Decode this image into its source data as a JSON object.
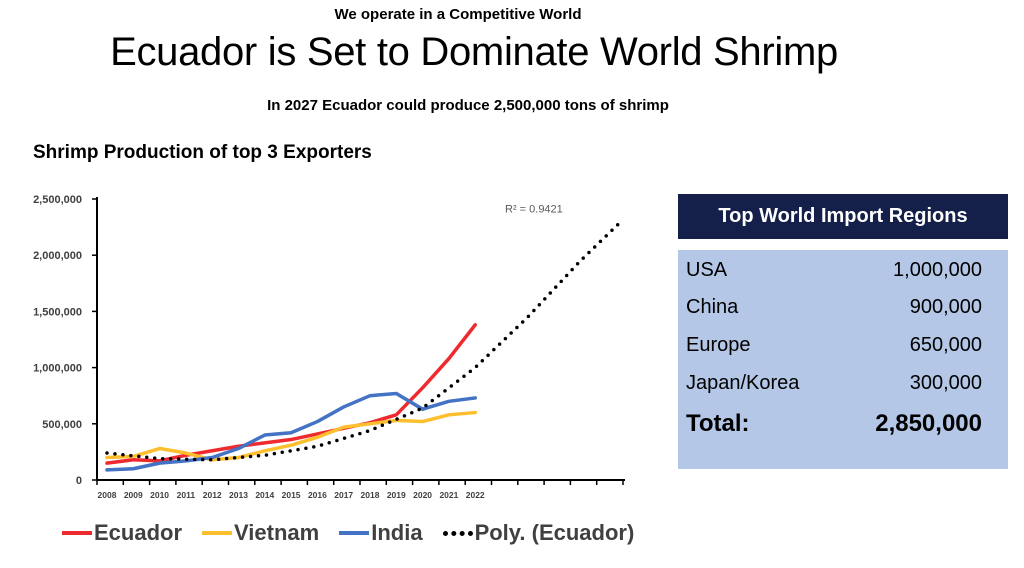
{
  "header": {
    "tagline": "We operate in a Competitive World",
    "headline": "Ecuador is Set to Dominate World Shrimp",
    "subhead": "In 2027 Ecuador could produce 2,500,000 tons of shrimp"
  },
  "chart_title": "Shrimp Production of top 3 Exporters",
  "chart_data": {
    "type": "line",
    "title": "Shrimp Production of top 3 Exporters",
    "xlabel": "",
    "ylabel": "",
    "categories": [
      "2008",
      "2009",
      "2010",
      "2011",
      "2012",
      "2013",
      "2014",
      "2015",
      "2016",
      "2017",
      "2018",
      "2019",
      "2020",
      "2021",
      "2022"
    ],
    "ylim": [
      0,
      2500000
    ],
    "yticks": [
      0,
      500000,
      1000000,
      1500000,
      2000000,
      2500000
    ],
    "ytick_labels": [
      "0",
      "500,000",
      "1,000,000",
      "1,500,000",
      "2,000,000",
      "2,500,000"
    ],
    "series": [
      {
        "name": "Ecuador",
        "color": "#ee2a2f",
        "values": [
          150000,
          180000,
          170000,
          220000,
          260000,
          300000,
          330000,
          360000,
          410000,
          460000,
          510000,
          580000,
          820000,
          1080000,
          1380000
        ]
      },
      {
        "name": "Vietnam",
        "color": "#fdbf2d",
        "values": [
          200000,
          210000,
          280000,
          240000,
          180000,
          200000,
          260000,
          310000,
          380000,
          470000,
          500000,
          530000,
          520000,
          580000,
          600000
        ]
      },
      {
        "name": "India",
        "color": "#4472c4",
        "values": [
          90000,
          100000,
          150000,
          170000,
          200000,
          280000,
          400000,
          420000,
          520000,
          650000,
          750000,
          770000,
          630000,
          700000,
          730000
        ]
      }
    ],
    "trendline": {
      "name": "Poly. (Ecuador)",
      "color": "#000000",
      "style": "dotted",
      "r_squared_label": "R² = 0.9421",
      "x": [
        0,
        2,
        4,
        6,
        8,
        10,
        12,
        14,
        16,
        18,
        19.5
      ],
      "values": [
        240000,
        190000,
        180000,
        220000,
        300000,
        440000,
        640000,
        1000000,
        1450000,
        1950000,
        2290000
      ]
    },
    "legend_position": "bottom"
  },
  "legend": [
    {
      "label": "Ecuador",
      "color": "#ee2a2f",
      "style": "solid"
    },
    {
      "label": "Vietnam",
      "color": "#fdbf2d",
      "style": "solid"
    },
    {
      "label": "India",
      "color": "#4472c4",
      "style": "solid"
    },
    {
      "label": "Poly. (Ecuador)",
      "color": "#000000",
      "style": "dotted"
    }
  ],
  "imports": {
    "title": "Top World Import Regions",
    "rows": [
      {
        "region": "USA",
        "value": "1,000,000"
      },
      {
        "region": "China",
        "value": "900,000"
      },
      {
        "region": "Europe",
        "value": "650,000"
      },
      {
        "region": "Japan/Korea",
        "value": "300,000"
      }
    ],
    "total_label": "Total:",
    "total_value": "2,850,000"
  }
}
